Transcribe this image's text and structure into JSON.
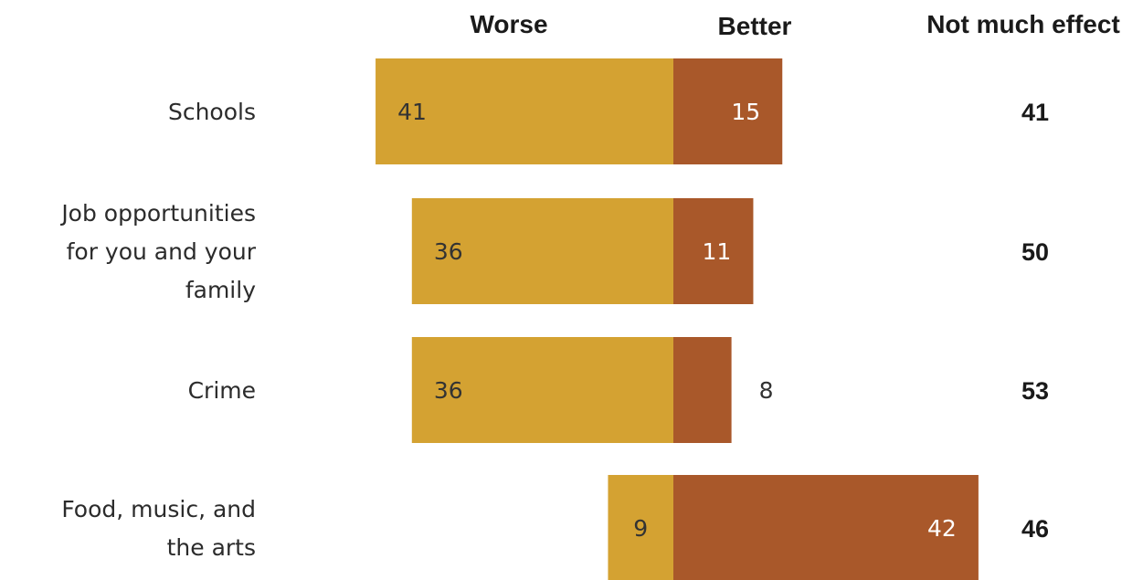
{
  "chart_data": {
    "type": "bar",
    "stacking": "diverging",
    "columns": {
      "worse": "Worse",
      "better": "Better",
      "not_much": "Not much effect"
    },
    "categories": [
      [
        "Schools"
      ],
      [
        "Job opportunities",
        "for you and your",
        "family"
      ],
      [
        "Crime"
      ],
      [
        "Food, music, and",
        "the arts"
      ]
    ],
    "series": [
      {
        "name": "Worse",
        "values": [
          41,
          36,
          36,
          9
        ]
      },
      {
        "name": "Better",
        "values": [
          15,
          11,
          8,
          42
        ]
      },
      {
        "name": "Not much effect",
        "values": [
          41,
          50,
          53,
          46
        ]
      }
    ],
    "colors": {
      "worse": "#d4a232",
      "better": "#a9582a",
      "worse_text": "#333333",
      "better_text": "#ffffff",
      "outside_text": "#333333"
    },
    "legend": "top",
    "grid": false
  }
}
